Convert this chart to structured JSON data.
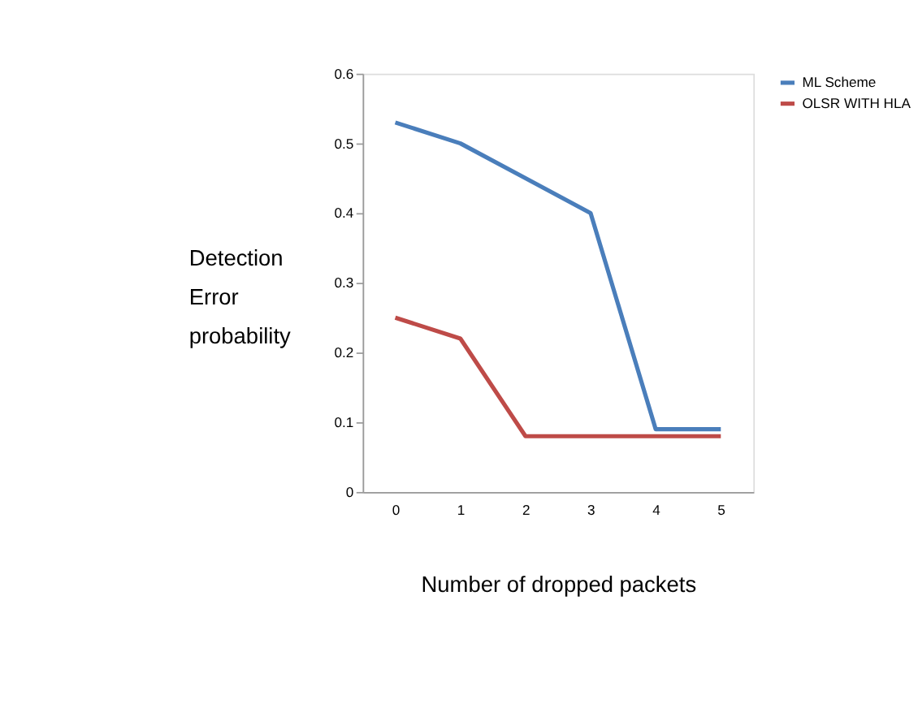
{
  "chart_data": {
    "type": "line",
    "xlabel": "Number of dropped packets",
    "ylabel": "Detection Error probability",
    "categories": [
      "0",
      "1",
      "2",
      "3",
      "4",
      "5"
    ],
    "series": [
      {
        "name": "ML Scheme",
        "color": "#4a7ebb",
        "values": [
          0.53,
          0.5,
          0.45,
          0.4,
          0.09,
          0.09
        ]
      },
      {
        "name": "OLSR WITH HLA",
        "color": "#be4b48",
        "values": [
          0.25,
          0.22,
          0.08,
          0.08,
          0.08,
          0.08
        ]
      }
    ],
    "ylim": [
      0,
      0.6
    ],
    "yticks": [
      0,
      0.1,
      0.2,
      0.3,
      0.4,
      0.5,
      0.6
    ],
    "grid": false,
    "legend": "right",
    "marker": "none",
    "line_style": "solid"
  }
}
